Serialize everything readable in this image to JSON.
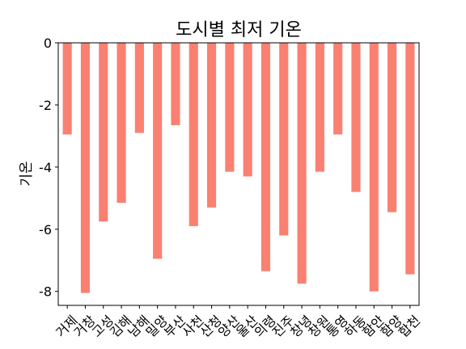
{
  "chart_data": {
    "type": "bar",
    "title": "도시별 최저 기온",
    "xlabel": "",
    "ylabel": "기온",
    "categories": [
      "거제",
      "거창",
      "고성",
      "김해",
      "남해",
      "밀양",
      "부산",
      "사천",
      "산청",
      "양산",
      "울산",
      "의령",
      "진주",
      "창녕",
      "창원",
      "통영",
      "하동",
      "함안",
      "함양",
      "합천"
    ],
    "values": [
      -2.95,
      -8.05,
      -5.75,
      -5.15,
      -2.9,
      -6.95,
      -2.65,
      -5.9,
      -5.3,
      -4.15,
      -4.3,
      -7.35,
      -6.2,
      -7.75,
      -4.15,
      -2.95,
      -4.8,
      -8.0,
      -5.45,
      -7.45
    ],
    "ylim": [
      -8.45,
      0
    ],
    "yticks": [
      0,
      -2,
      -4,
      -6,
      -8
    ],
    "ytick_labels": [
      "0",
      "-2",
      "-4",
      "-6",
      "-8"
    ],
    "grid": false,
    "bar_color": "#fa8072"
  }
}
